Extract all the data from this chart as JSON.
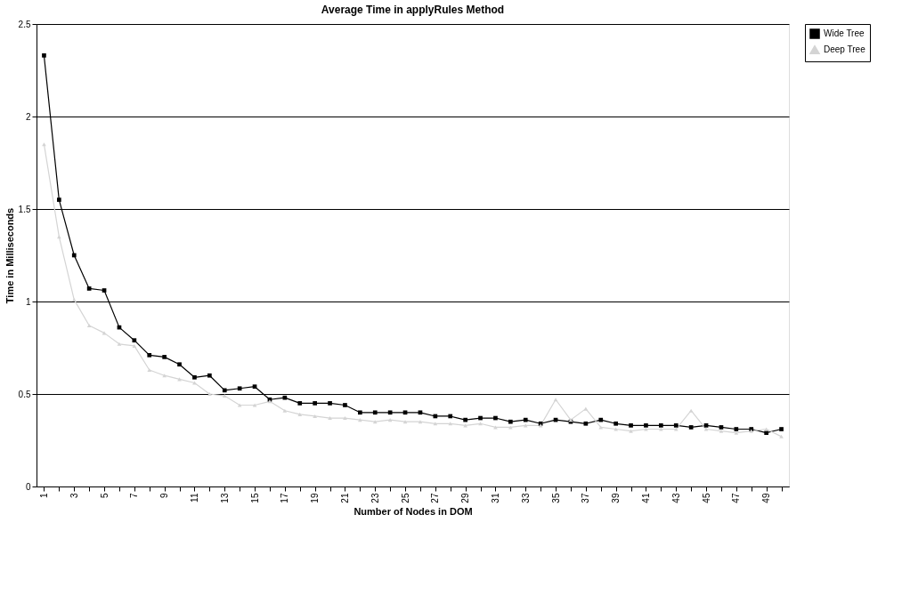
{
  "chart_data": {
    "type": "line",
    "title": "Average Time in applyRules Method",
    "xlabel": "Number of Nodes in DOM",
    "ylabel": "Time in Milliseconds",
    "categories": [
      "1",
      null,
      "3",
      null,
      "5",
      null,
      "7",
      null,
      "9",
      null,
      "11",
      null,
      "13",
      null,
      "15",
      null,
      "17",
      null,
      "19",
      null,
      "21",
      null,
      "23",
      null,
      "25",
      null,
      "27",
      null,
      "29",
      null,
      "31",
      null,
      "33",
      null,
      "35",
      null,
      "37",
      null,
      "39",
      null,
      "41",
      null,
      "43",
      null,
      "45",
      null,
      "47",
      null,
      "49",
      null
    ],
    "series": [
      {
        "name": "Wide Tree",
        "color": "#000000",
        "marker": "square",
        "values": [
          2.33,
          1.55,
          1.25,
          1.07,
          1.06,
          0.86,
          0.79,
          0.71,
          0.7,
          0.66,
          0.59,
          0.6,
          0.52,
          0.53,
          0.54,
          0.47,
          0.48,
          0.45,
          0.45,
          0.45,
          0.44,
          0.4,
          0.4,
          0.4,
          0.4,
          0.4,
          0.38,
          0.38,
          0.36,
          0.37,
          0.37,
          0.35,
          0.36,
          0.34,
          0.36,
          0.35,
          0.34,
          0.36,
          0.34,
          0.33,
          0.33,
          0.33,
          0.33,
          0.32,
          0.33,
          0.32,
          0.31,
          0.31,
          0.29,
          0.31
        ]
      },
      {
        "name": "Deep Tree",
        "color": "#d4d4d4",
        "marker": "triangle",
        "values": [
          1.85,
          1.35,
          1.01,
          0.87,
          0.83,
          0.77,
          0.76,
          0.63,
          0.6,
          0.58,
          0.56,
          0.5,
          0.49,
          0.44,
          0.44,
          0.46,
          0.41,
          0.39,
          0.38,
          0.37,
          0.37,
          0.36,
          0.35,
          0.36,
          0.35,
          0.35,
          0.34,
          0.34,
          0.33,
          0.34,
          0.32,
          0.32,
          0.33,
          0.33,
          0.47,
          0.36,
          0.42,
          0.32,
          0.31,
          0.3,
          0.31,
          0.31,
          0.31,
          0.41,
          0.31,
          0.3,
          0.29,
          0.3,
          0.31,
          0.27
        ]
      }
    ],
    "ylim": [
      0,
      2.5
    ],
    "yticks": [
      0,
      0.5,
      1,
      1.5,
      2,
      2.5
    ],
    "grid": "y",
    "legend": "right",
    "line_style": "solid"
  }
}
